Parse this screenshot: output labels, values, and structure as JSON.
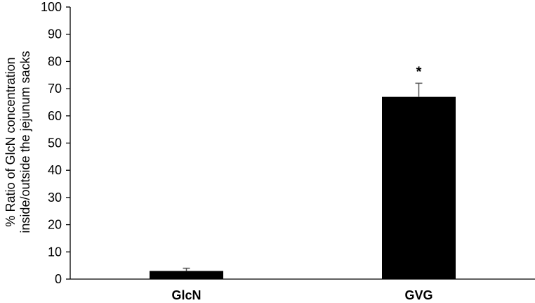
{
  "chart_data": {
    "type": "bar",
    "categories": [
      "GlcN",
      "GVG"
    ],
    "values": [
      3,
      67
    ],
    "error": [
      1,
      5
    ],
    "annotations": [
      "",
      "*"
    ],
    "ylabel_lines": [
      "% Ratio of GlcN concentration",
      "inside/outside the jejunum sacks"
    ],
    "xlabel": "",
    "ylim": [
      0,
      100
    ],
    "yticks": [
      0,
      10,
      20,
      30,
      40,
      50,
      60,
      70,
      80,
      90,
      100
    ],
    "bar_color": "#000000",
    "grid": false,
    "legend": "none"
  }
}
